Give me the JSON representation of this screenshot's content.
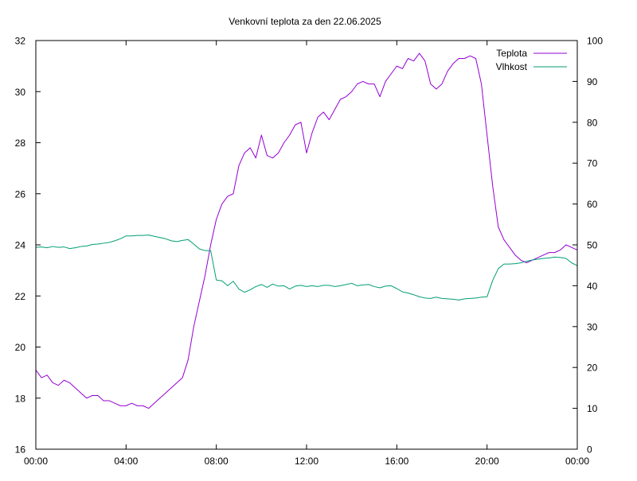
{
  "chart_data": {
    "type": "line",
    "title": "Venkovní teplota za den 22.06.2025",
    "xlabel": "",
    "ylabel": "",
    "y2label": "",
    "x_tick_labels": [
      "00:00",
      "04:00",
      "08:00",
      "12:00",
      "16:00",
      "20:00",
      "00:00"
    ],
    "xlim_hours": [
      0,
      24
    ],
    "ylim": [
      16,
      32
    ],
    "y_ticks": [
      16,
      18,
      20,
      22,
      24,
      26,
      28,
      30,
      32
    ],
    "y2lim": [
      0,
      100
    ],
    "y2_ticks": [
      0,
      10,
      20,
      30,
      40,
      50,
      60,
      70,
      80,
      90,
      100
    ],
    "grid": false,
    "legend_position": "top-right",
    "series": [
      {
        "name": "Teplota",
        "axis": "left",
        "color": "#9400d3",
        "x": [
          0,
          0.25,
          0.5,
          0.75,
          1,
          1.25,
          1.5,
          1.75,
          2,
          2.25,
          2.5,
          2.75,
          3,
          3.25,
          3.5,
          3.75,
          4,
          4.25,
          4.5,
          4.75,
          5,
          5.25,
          5.5,
          5.75,
          6,
          6.25,
          6.5,
          6.75,
          7,
          7.25,
          7.5,
          7.75,
          8,
          8.25,
          8.5,
          8.75,
          9,
          9.25,
          9.5,
          9.75,
          10,
          10.25,
          10.5,
          10.75,
          11,
          11.25,
          11.5,
          11.75,
          12,
          12.25,
          12.5,
          12.75,
          13,
          13.25,
          13.5,
          13.75,
          14,
          14.25,
          14.5,
          14.75,
          15,
          15.25,
          15.5,
          15.75,
          16,
          16.25,
          16.5,
          16.75,
          17,
          17.25,
          17.5,
          17.75,
          18,
          18.25,
          18.5,
          18.75,
          19,
          19.25,
          19.5,
          19.75,
          20,
          20.25,
          20.5,
          20.75,
          21,
          21.25,
          21.5,
          21.75,
          22,
          22.25,
          22.5,
          22.75,
          23,
          23.25,
          23.5,
          23.75,
          24
        ],
        "values": [
          19.1,
          18.8,
          18.9,
          18.6,
          18.5,
          18.7,
          18.6,
          18.4,
          18.2,
          18.0,
          18.1,
          18.1,
          17.9,
          17.9,
          17.8,
          17.7,
          17.7,
          17.8,
          17.7,
          17.7,
          17.6,
          17.8,
          18.0,
          18.2,
          18.4,
          18.6,
          18.8,
          19.5,
          20.8,
          21.8,
          22.8,
          24.0,
          25.0,
          25.6,
          25.9,
          26.0,
          27.1,
          27.6,
          27.8,
          27.4,
          28.3,
          27.5,
          27.4,
          27.6,
          28.0,
          28.3,
          28.7,
          28.8,
          27.6,
          28.4,
          29.0,
          29.2,
          28.9,
          29.3,
          29.7,
          29.8,
          30.0,
          30.3,
          30.4,
          30.3,
          30.3,
          29.8,
          30.4,
          30.7,
          31.0,
          30.9,
          31.3,
          31.2,
          31.5,
          31.2,
          30.3,
          30.1,
          30.3,
          30.8,
          31.1,
          31.3,
          31.3,
          31.4,
          31.3,
          30.3,
          28.3,
          26.3,
          24.7,
          24.2,
          23.9,
          23.6,
          23.4,
          23.3,
          23.4,
          23.5,
          23.6,
          23.7,
          23.7,
          23.8,
          24.0,
          23.9,
          23.8
        ]
      },
      {
        "name": "Vlhkost",
        "axis": "right",
        "color": "#009e73",
        "x": [
          0,
          0.25,
          0.5,
          0.75,
          1,
          1.25,
          1.5,
          1.75,
          2,
          2.25,
          2.5,
          2.75,
          3,
          3.25,
          3.5,
          3.75,
          4,
          4.25,
          4.5,
          4.75,
          5,
          5.25,
          5.5,
          5.75,
          6,
          6.25,
          6.5,
          6.75,
          7,
          7.25,
          7.5,
          7.75,
          8,
          8.25,
          8.5,
          8.75,
          9,
          9.25,
          9.5,
          9.75,
          10,
          10.25,
          10.5,
          10.75,
          11,
          11.25,
          11.5,
          11.75,
          12,
          12.25,
          12.5,
          12.75,
          13,
          13.25,
          13.5,
          13.75,
          14,
          14.25,
          14.5,
          14.75,
          15,
          15.25,
          15.5,
          15.75,
          16,
          16.25,
          16.5,
          16.75,
          17,
          17.25,
          17.5,
          17.75,
          18,
          18.25,
          18.5,
          18.75,
          19,
          19.25,
          19.5,
          19.75,
          20,
          20.25,
          20.5,
          20.75,
          21,
          21.25,
          21.5,
          21.75,
          22,
          22.25,
          22.5,
          22.75,
          23,
          23.25,
          23.5,
          23.75,
          24
        ],
        "values": [
          49.4,
          49.5,
          49.3,
          49.6,
          49.4,
          49.5,
          49.1,
          49.3,
          49.6,
          49.7,
          50.1,
          50.2,
          50.4,
          50.6,
          51.0,
          51.5,
          52.2,
          52.2,
          52.3,
          52.3,
          52.4,
          52.1,
          51.8,
          51.5,
          51.0,
          50.8,
          51.1,
          51.3,
          50.2,
          49.0,
          48.6,
          48.6,
          41.4,
          41.2,
          40.0,
          41.1,
          39.2,
          38.4,
          39.0,
          39.8,
          40.3,
          39.6,
          40.4,
          39.9,
          40.0,
          39.2,
          39.9,
          40.1,
          39.8,
          40.0,
          39.8,
          40.1,
          40.1,
          39.8,
          40.0,
          40.3,
          40.6,
          40.0,
          40.2,
          40.3,
          39.8,
          39.5,
          39.9,
          40.0,
          39.3,
          38.5,
          38.2,
          37.8,
          37.3,
          37.0,
          36.9,
          37.2,
          36.9,
          36.8,
          36.7,
          36.5,
          36.8,
          36.9,
          37.0,
          37.2,
          37.3,
          41.3,
          44.2,
          45.3,
          45.3,
          45.4,
          45.6,
          46.0,
          46.3,
          46.5,
          46.7,
          46.8,
          47.0,
          46.9,
          46.7,
          45.6,
          44.9
        ]
      }
    ]
  }
}
